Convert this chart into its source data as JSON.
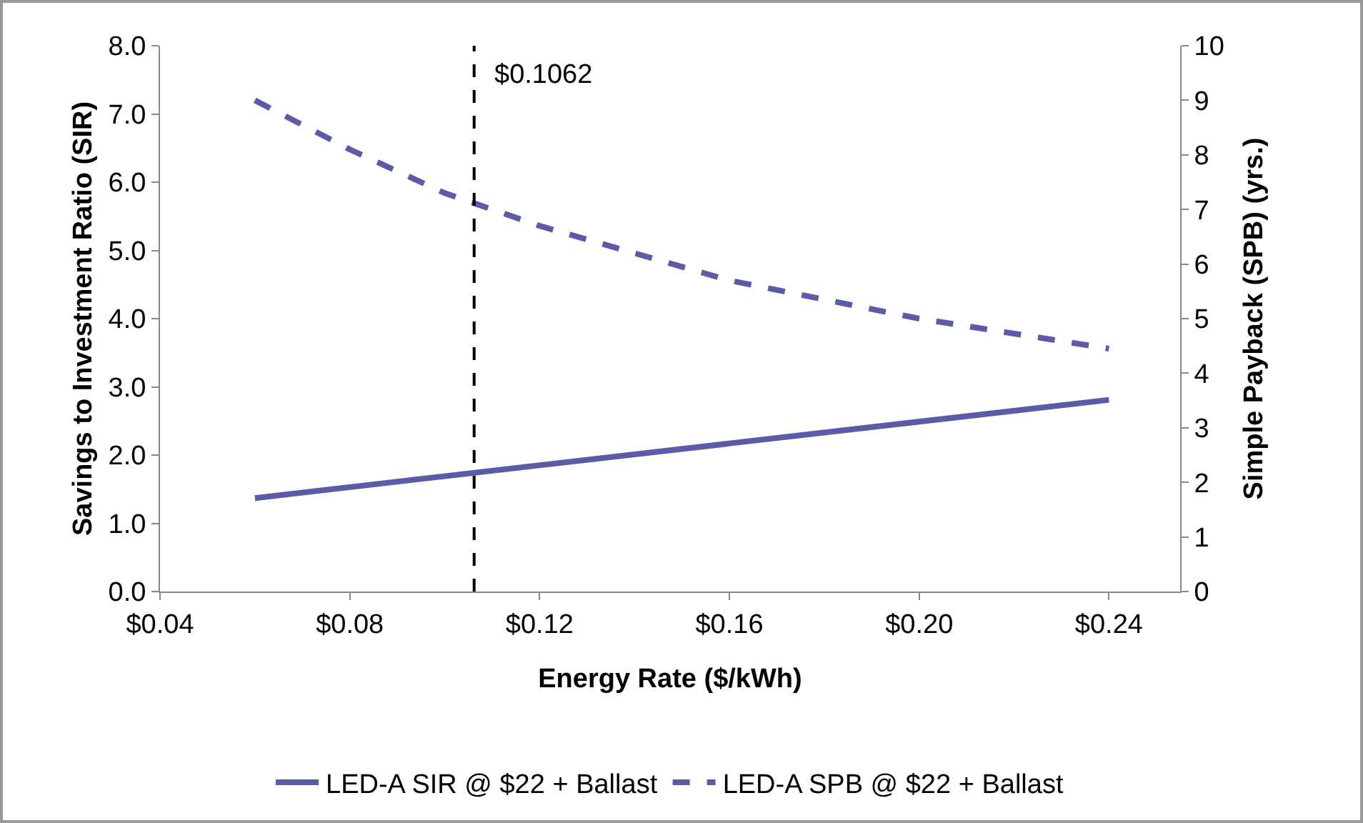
{
  "chart_data": {
    "type": "line",
    "xlabel": "Energy Rate ($/kWh)",
    "ylabel": "Savings to Investment Ratio (SIR)",
    "y2label": "Simple Payback (SPB) (yrs.)",
    "series": [
      {
        "name": "LED-A SIR @ $22 + Ballast",
        "color": "#5b5ba8",
        "line_style": "solid",
        "x": [
          0.06,
          0.24
        ],
        "values": [
          1.37,
          2.81
        ]
      },
      {
        "name": "LED-A SPB @ $22 + Ballast",
        "color": "#5b5ba8",
        "line_style": "dashed",
        "axis": "y2",
        "x": [
          0.06,
          0.08,
          0.1,
          0.12,
          0.16,
          0.2,
          0.24
        ],
        "values": [
          9.0,
          8.1,
          7.3,
          6.7,
          5.7,
          5.0,
          4.45
        ]
      }
    ],
    "xlim": [
      0.04,
      0.255
    ],
    "xticks": [
      {
        "value": 0.04,
        "label": "$0.04"
      },
      {
        "value": 0.08,
        "label": "$0.08"
      },
      {
        "value": 0.12,
        "label": "$0.12"
      },
      {
        "value": 0.16,
        "label": "$0.16"
      },
      {
        "value": 0.2,
        "label": "$0.20"
      },
      {
        "value": 0.24,
        "label": "$0.24"
      }
    ],
    "ylim": [
      0,
      8
    ],
    "yticks": [
      {
        "value": 0,
        "label": "0.0"
      },
      {
        "value": 1,
        "label": "1.0"
      },
      {
        "value": 2,
        "label": "2.0"
      },
      {
        "value": 3,
        "label": "3.0"
      },
      {
        "value": 4,
        "label": "4.0"
      },
      {
        "value": 5,
        "label": "5.0"
      },
      {
        "value": 6,
        "label": "6.0"
      },
      {
        "value": 7,
        "label": "7.0"
      },
      {
        "value": 8,
        "label": "8.0"
      }
    ],
    "y2lim": [
      0,
      10
    ],
    "y2ticks": [
      0,
      1,
      2,
      3,
      4,
      5,
      6,
      7,
      8,
      9,
      10
    ],
    "ref_lines": [
      {
        "axis": "x",
        "value": 0.1062,
        "label": "$0.1062",
        "color": "#000000",
        "line_style": "dashed"
      }
    ],
    "grid": false,
    "legend": "bottom",
    "marker": "none"
  }
}
